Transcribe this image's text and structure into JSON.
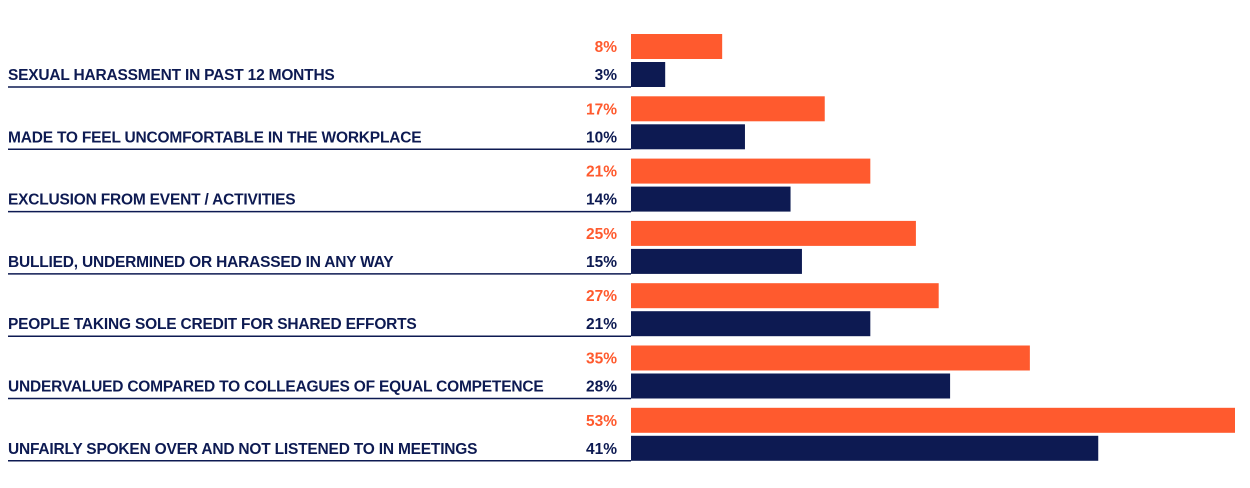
{
  "chart_data": {
    "type": "bar",
    "orientation": "horizontal",
    "categories": [
      "SEXUAL HARASSMENT IN PAST 12 MONTHS",
      "MADE TO FEEL UNCOMFORTABLE IN THE WORKPLACE",
      "EXCLUSION FROM EVENT / ACTIVITIES",
      "BULLIED, UNDERMINED OR HARASSED IN ANY WAY",
      "PEOPLE TAKING SOLE CREDIT FOR SHARED EFFORTS",
      "UNDERVALUED COMPARED TO COLLEAGUES OF EQUAL COMPETENCE",
      "UNFAIRLY SPOKEN OVER AND NOT LISTENED TO IN MEETINGS"
    ],
    "series": [
      {
        "values": [
          8,
          17,
          21,
          25,
          27,
          35,
          53
        ],
        "labels": [
          "8%",
          "17%",
          "21%",
          "25%",
          "27%",
          "35%",
          "53%"
        ],
        "color": "#ff5a2e"
      },
      {
        "values": [
          3,
          10,
          14,
          15,
          21,
          28,
          41
        ],
        "labels": [
          "3%",
          "10%",
          "14%",
          "15%",
          "21%",
          "28%",
          "41%"
        ],
        "color": "#0d1a52"
      }
    ],
    "xlim": [
      0,
      53
    ],
    "title": "",
    "xlabel": "",
    "ylabel": "",
    "legend": "none",
    "grid": false
  },
  "colors": {
    "text": "#0d1a52",
    "accent": "#ff5a2e",
    "divider": "#0d1a52"
  }
}
